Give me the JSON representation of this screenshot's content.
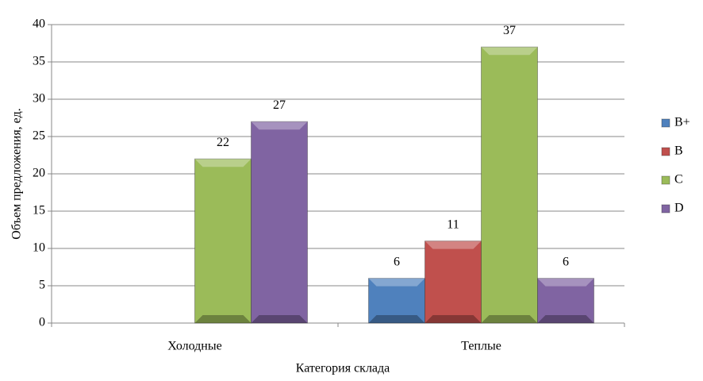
{
  "chart_data": {
    "type": "bar",
    "x_label": "Категория склада",
    "y_label": "Объем предложения, ед.",
    "categories": [
      "Холодные",
      "Теплые"
    ],
    "series": [
      {
        "name": "B+",
        "color": "#4f81bd",
        "values": [
          null,
          6
        ]
      },
      {
        "name": "B",
        "color": "#c0504d",
        "values": [
          null,
          11
        ]
      },
      {
        "name": "C",
        "color": "#9bbb59",
        "values": [
          22,
          37
        ]
      },
      {
        "name": "D",
        "color": "#8064a2",
        "values": [
          27,
          6
        ]
      }
    ],
    "ylim": [
      0,
      40
    ],
    "yticks": [
      0,
      5,
      10,
      15,
      20,
      25,
      30,
      35,
      40
    ],
    "grid": true,
    "legend": "right"
  }
}
